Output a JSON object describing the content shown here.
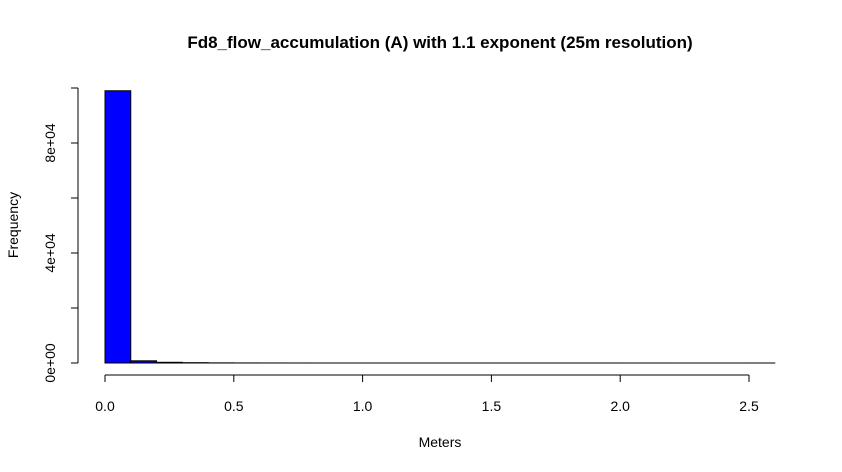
{
  "chart_data": {
    "type": "bar",
    "title": "Fd8_flow_accumulation (A) with 1.1 exponent (25m resolution)",
    "xlabel": "Meters",
    "ylabel": "Frequency",
    "xlim": [
      0,
      2.6
    ],
    "ylim": [
      0,
      100000
    ],
    "bar_color": "#0000ff",
    "bin_width": 0.1,
    "bins": [
      {
        "start": 0.0,
        "end": 0.1,
        "count": 99000
      },
      {
        "start": 0.1,
        "end": 0.2,
        "count": 800
      },
      {
        "start": 0.2,
        "end": 0.3,
        "count": 250
      },
      {
        "start": 0.3,
        "end": 0.4,
        "count": 120
      },
      {
        "start": 0.4,
        "end": 0.5,
        "count": 50
      },
      {
        "start": 0.5,
        "end": 0.6,
        "count": 25
      },
      {
        "start": 0.6,
        "end": 0.7,
        "count": 12
      },
      {
        "start": 0.7,
        "end": 0.8,
        "count": 8
      },
      {
        "start": 0.8,
        "end": 0.9,
        "count": 5
      },
      {
        "start": 0.9,
        "end": 1.0,
        "count": 4
      },
      {
        "start": 1.0,
        "end": 1.1,
        "count": 3
      },
      {
        "start": 1.1,
        "end": 1.2,
        "count": 2
      },
      {
        "start": 1.2,
        "end": 1.3,
        "count": 2
      },
      {
        "start": 1.3,
        "end": 1.4,
        "count": 1
      },
      {
        "start": 1.4,
        "end": 1.5,
        "count": 1
      },
      {
        "start": 1.5,
        "end": 1.6,
        "count": 1
      },
      {
        "start": 1.6,
        "end": 1.7,
        "count": 1
      },
      {
        "start": 1.7,
        "end": 1.8,
        "count": 1
      },
      {
        "start": 1.8,
        "end": 1.9,
        "count": 1
      },
      {
        "start": 1.9,
        "end": 2.0,
        "count": 1
      },
      {
        "start": 2.0,
        "end": 2.1,
        "count": 0
      },
      {
        "start": 2.1,
        "end": 2.2,
        "count": 1
      },
      {
        "start": 2.2,
        "end": 2.3,
        "count": 0
      },
      {
        "start": 2.3,
        "end": 2.4,
        "count": 0
      },
      {
        "start": 2.4,
        "end": 2.5,
        "count": 0
      },
      {
        "start": 2.5,
        "end": 2.6,
        "count": 1
      }
    ],
    "x_ticks": [
      {
        "value": 0.0,
        "label": "0.0"
      },
      {
        "value": 0.5,
        "label": "0.5"
      },
      {
        "value": 1.0,
        "label": "1.0"
      },
      {
        "value": 1.5,
        "label": "1.5"
      },
      {
        "value": 2.0,
        "label": "2.0"
      },
      {
        "value": 2.5,
        "label": "2.5"
      }
    ],
    "y_ticks": [
      {
        "value": 0,
        "label": "0e+00"
      },
      {
        "value": 20000,
        "label": ""
      },
      {
        "value": 40000,
        "label": "4e+04"
      },
      {
        "value": 60000,
        "label": ""
      },
      {
        "value": 80000,
        "label": "8e+04"
      },
      {
        "value": 100000,
        "label": ""
      }
    ],
    "grid": false,
    "legend": "none"
  }
}
